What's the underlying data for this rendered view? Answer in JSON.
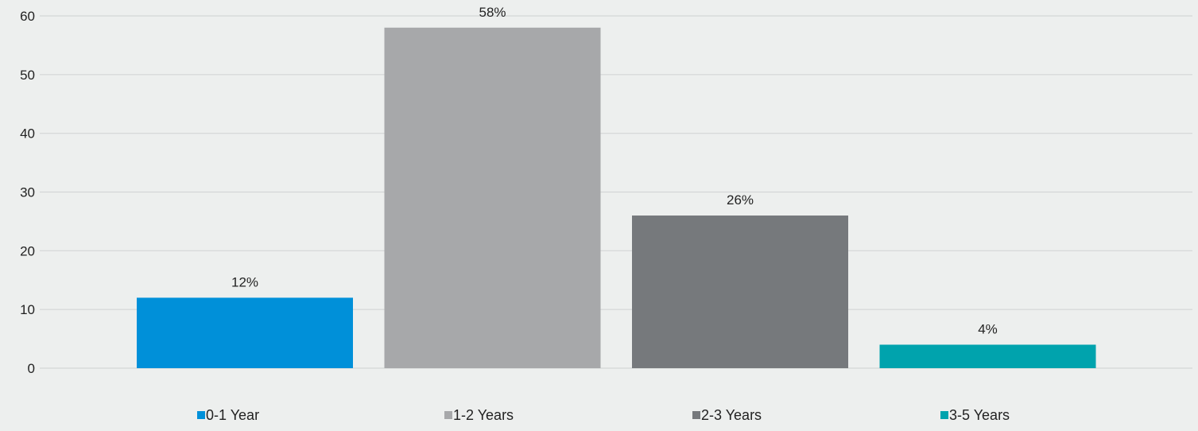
{
  "chart_data": {
    "type": "bar",
    "categories": [
      "0-1 Year",
      "1-2 Years",
      "2-3 Years",
      "3-5 Years"
    ],
    "values": [
      12,
      58,
      26,
      4
    ],
    "data_labels": [
      "12%",
      "58%",
      "26%",
      "4%"
    ],
    "colors": [
      "#0090d9",
      "#a7a8aa",
      "#76797c",
      "#00a3ad"
    ],
    "ylim": [
      0,
      60
    ],
    "y_ticks": [
      0,
      10,
      20,
      30,
      40,
      50,
      60
    ],
    "grid": true,
    "legend": {
      "placement": "bottom",
      "entries": [
        "0-1 Year",
        "1-2 Years",
        "2-3 Years",
        "3-5 Years"
      ]
    },
    "title": "",
    "xlabel": "",
    "ylabel": ""
  }
}
